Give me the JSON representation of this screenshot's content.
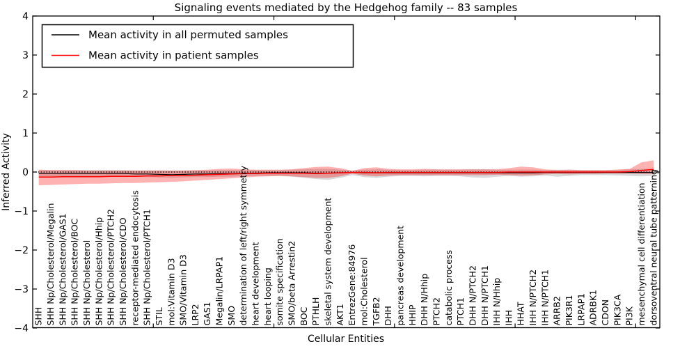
{
  "figure": {
    "title": "Signaling events mediated by the Hedgehog family -- 83 samples",
    "xlabel": "Cellular Entities",
    "ylabel": "Inferred Activity"
  },
  "legend": {
    "entries": [
      {
        "label": "Mean activity in all permuted samples",
        "color": "#000000"
      },
      {
        "label": "Mean activity in patient samples",
        "color": "#ff0000"
      }
    ]
  },
  "colors": {
    "permuted_line": "#000000",
    "patient_line": "#ff0000",
    "permuted_band": "rgba(0,0,0,0.15)",
    "patient_band": "rgba(255,0,0,0.30)",
    "zero_line": "#000000",
    "axis": "#000000"
  },
  "chart_data": {
    "type": "line",
    "title": "Signaling events mediated by the Hedgehog family -- 83 samples",
    "xlabel": "Cellular Entities",
    "ylabel": "Inferred Activity",
    "ylim": [
      -4,
      4
    ],
    "yticks": [
      -4,
      -3,
      -2,
      -1,
      0,
      1,
      2,
      3,
      4
    ],
    "ytick_labels": [
      "−4",
      "−3",
      "−2",
      "−1",
      "0",
      "1",
      "2",
      "3",
      "4"
    ],
    "xticks_major": [
      10,
      20,
      30,
      40,
      50
    ],
    "grid": false,
    "legend_position": "upper left",
    "zero_line_style": "dotted",
    "categories": [
      "SHH",
      "SHH Np/Cholesterol/Megalin",
      "SHH Np/Cholesterol/GAS1",
      "SHH Np/Cholesterol/BOC",
      "SHH Np/Cholesterol",
      "SHH Np/Cholesterol/Hhip",
      "SHH Np/Cholesterol/PTCH2",
      "SHH Np/Cholesterol/CDO",
      "receptor-mediated endocytosis",
      "SHH Np/Cholesterol/PTCH1",
      "STIL",
      "mol:Vitamin D3",
      "SMO/Vitamin D3",
      "LRP2",
      "GAS1",
      "Megalin/LRPAP1",
      "SMO",
      "determination of left/right symmetry",
      "heart development",
      "heart looping",
      "somite specification",
      "SMO/beta Arrestin2",
      "BOC",
      "PTHLH",
      "skeletal system development",
      "AKT1",
      "EntrezGene:84976",
      "mol:Cholesterol",
      "TGFB2",
      "DHH",
      "pancreas development",
      "HHIP",
      "DHH N/Hhip",
      "PTCH2",
      "catabolic process",
      "PTCH1",
      "DHH N/PTCH2",
      "DHH N/PTCH1",
      "IHH N/Hhip",
      "IHH",
      "HHAT",
      "IHH N/PTCH2",
      "IHH N/PTCH1",
      "ARRB2",
      "PIK3R1",
      "LRPAP1",
      "ADRBK1",
      "CDON",
      "PIK3CA",
      "PI3K",
      "mesenchymal cell differentiation",
      "dorsoventral neural tube patterning"
    ],
    "series": [
      {
        "name": "Mean activity in all permuted samples",
        "color": "#000000",
        "band_color": "rgba(0,0,0,0.15)",
        "values": [
          -0.04,
          -0.04,
          -0.04,
          -0.04,
          -0.04,
          -0.04,
          -0.04,
          -0.04,
          -0.05,
          -0.05,
          -0.06,
          -0.07,
          -0.06,
          -0.05,
          -0.05,
          -0.04,
          -0.04,
          -0.03,
          -0.03,
          -0.02,
          -0.02,
          -0.02,
          -0.02,
          -0.03,
          -0.03,
          -0.02,
          -0.01,
          -0.02,
          -0.02,
          -0.02,
          -0.02,
          -0.02,
          -0.02,
          -0.02,
          -0.02,
          -0.02,
          -0.02,
          -0.02,
          -0.02,
          -0.02,
          -0.02,
          -0.02,
          -0.01,
          -0.01,
          -0.01,
          -0.01,
          -0.01,
          -0.01,
          -0.01,
          -0.01,
          -0.01,
          -0.01
        ],
        "band_upper": [
          0.05,
          0.05,
          0.05,
          0.05,
          0.05,
          0.05,
          0.05,
          0.05,
          0.04,
          0.04,
          0.04,
          0.03,
          0.04,
          0.04,
          0.04,
          0.05,
          0.05,
          0.05,
          0.05,
          0.05,
          0.05,
          0.06,
          0.07,
          0.08,
          0.08,
          0.06,
          0.04,
          0.06,
          0.07,
          0.06,
          0.05,
          0.05,
          0.06,
          0.06,
          0.06,
          0.06,
          0.07,
          0.07,
          0.06,
          0.06,
          0.06,
          0.06,
          0.05,
          0.06,
          0.06,
          0.05,
          0.05,
          0.05,
          0.06,
          0.07,
          0.08,
          0.08
        ],
        "band_lower": [
          -0.13,
          -0.13,
          -0.13,
          -0.13,
          -0.13,
          -0.13,
          -0.12,
          -0.12,
          -0.13,
          -0.13,
          -0.14,
          -0.15,
          -0.14,
          -0.13,
          -0.13,
          -0.12,
          -0.12,
          -0.11,
          -0.1,
          -0.1,
          -0.1,
          -0.12,
          -0.15,
          -0.18,
          -0.2,
          -0.15,
          -0.08,
          -0.13,
          -0.15,
          -0.12,
          -0.1,
          -0.1,
          -0.11,
          -0.1,
          -0.1,
          -0.11,
          -0.14,
          -0.15,
          -0.12,
          -0.1,
          -0.12,
          -0.11,
          -0.09,
          -0.12,
          -0.1,
          -0.08,
          -0.08,
          -0.08,
          -0.09,
          -0.1,
          -0.11,
          -0.1
        ]
      },
      {
        "name": "Mean activity in patient samples",
        "color": "#ff0000",
        "band_color": "rgba(255,0,0,0.30)",
        "values": [
          -0.13,
          -0.13,
          -0.12,
          -0.12,
          -0.12,
          -0.12,
          -0.11,
          -0.11,
          -0.11,
          -0.1,
          -0.1,
          -0.09,
          -0.09,
          -0.08,
          -0.07,
          -0.06,
          -0.05,
          -0.04,
          -0.04,
          -0.03,
          -0.03,
          -0.03,
          -0.03,
          -0.04,
          -0.03,
          -0.02,
          -0.01,
          -0.01,
          -0.02,
          -0.01,
          -0.01,
          -0.01,
          -0.01,
          -0.01,
          -0.01,
          -0.01,
          -0.01,
          -0.01,
          -0.01,
          0.0,
          0.0,
          0.0,
          0.0,
          0.0,
          0.0,
          0.0,
          0.0,
          0.0,
          0.0,
          0.01,
          0.04,
          0.07
        ],
        "band_upper": [
          0.06,
          0.05,
          0.05,
          0.05,
          0.04,
          0.04,
          0.04,
          0.04,
          0.04,
          0.04,
          0.04,
          0.04,
          0.04,
          0.05,
          0.06,
          0.08,
          0.09,
          0.07,
          0.06,
          0.06,
          0.06,
          0.07,
          0.1,
          0.13,
          0.14,
          0.1,
          0.03,
          0.1,
          0.12,
          0.08,
          0.07,
          0.07,
          0.08,
          0.07,
          0.07,
          0.07,
          0.07,
          0.07,
          0.07,
          0.1,
          0.14,
          0.12,
          0.07,
          0.05,
          0.06,
          0.05,
          0.05,
          0.05,
          0.06,
          0.08,
          0.25,
          0.3
        ],
        "band_lower": [
          -0.34,
          -0.33,
          -0.32,
          -0.31,
          -0.3,
          -0.3,
          -0.29,
          -0.28,
          -0.28,
          -0.27,
          -0.26,
          -0.25,
          -0.24,
          -0.22,
          -0.2,
          -0.18,
          -0.16,
          -0.14,
          -0.12,
          -0.11,
          -0.1,
          -0.11,
          -0.13,
          -0.15,
          -0.15,
          -0.11,
          -0.04,
          -0.09,
          -0.11,
          -0.09,
          -0.08,
          -0.08,
          -0.08,
          -0.08,
          -0.08,
          -0.08,
          -0.08,
          -0.08,
          -0.07,
          -0.08,
          -0.09,
          -0.08,
          -0.06,
          -0.05,
          -0.06,
          -0.05,
          -0.05,
          -0.04,
          -0.04,
          -0.04,
          -0.05,
          -0.05
        ]
      }
    ]
  }
}
